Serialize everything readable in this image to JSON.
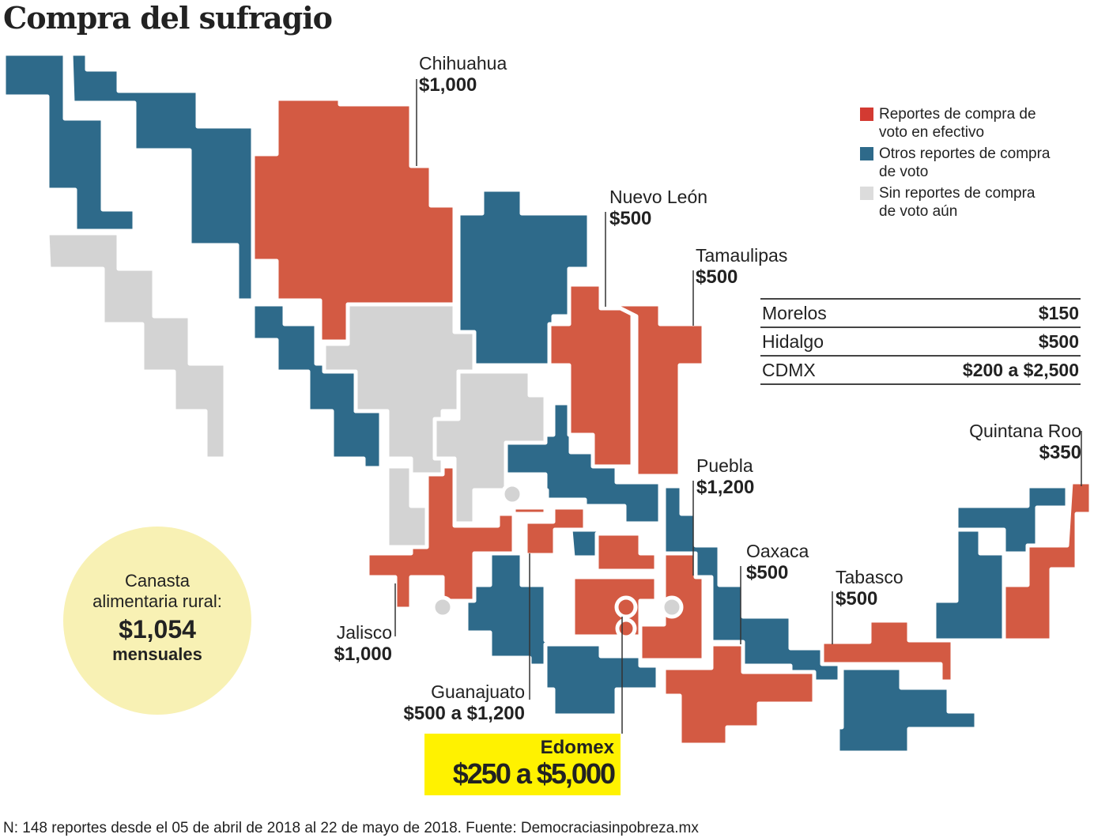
{
  "title": "Compra del sufragio",
  "colors": {
    "cash": "#d35a43",
    "other": "#2e6a8a",
    "none": "#d3d3d3",
    "highlight": "#fff200",
    "circle": "#f8f1b4"
  },
  "legend": [
    {
      "label": "Reportes de compra de voto en efectivo",
      "color": "#d35a43"
    },
    {
      "label": "Otros reportes de compra de voto",
      "color": "#2e6a8a"
    },
    {
      "label": "Sin reportes de compra de voto aún",
      "color": "#d3d3d3"
    }
  ],
  "states": [
    {
      "name": "Chihuahua",
      "value": "$1,000"
    },
    {
      "name": "Nuevo León",
      "value": "$500"
    },
    {
      "name": "Tamaulipas",
      "value": "$500"
    },
    {
      "name": "Quintana Roo",
      "value": "$350"
    },
    {
      "name": "Puebla",
      "value": "$1,200"
    },
    {
      "name": "Oaxaca",
      "value": "$500"
    },
    {
      "name": "Tabasco",
      "value": "$500"
    },
    {
      "name": "Jalisco",
      "value": "$1,000"
    },
    {
      "name": "Guanajuato",
      "value": "$500 a $1,200"
    }
  ],
  "table": [
    {
      "name": "Morelos",
      "value": "$150"
    },
    {
      "name": "Hidalgo",
      "value": "$500"
    },
    {
      "name": "CDMX",
      "value": "$200 a $2,500"
    }
  ],
  "edomex": {
    "name": "Edomex",
    "value": "$250 a $5,000"
  },
  "canasta": {
    "line1": "Canasta",
    "line2": "alimentaria rural:",
    "value": "$1,054",
    "unit": "mensuales"
  },
  "footer": "N: 148 reportes desde el 05 de abril de 2018 al 22 de mayo de 2018. Fuente: Democraciasinpobreza.mx"
}
